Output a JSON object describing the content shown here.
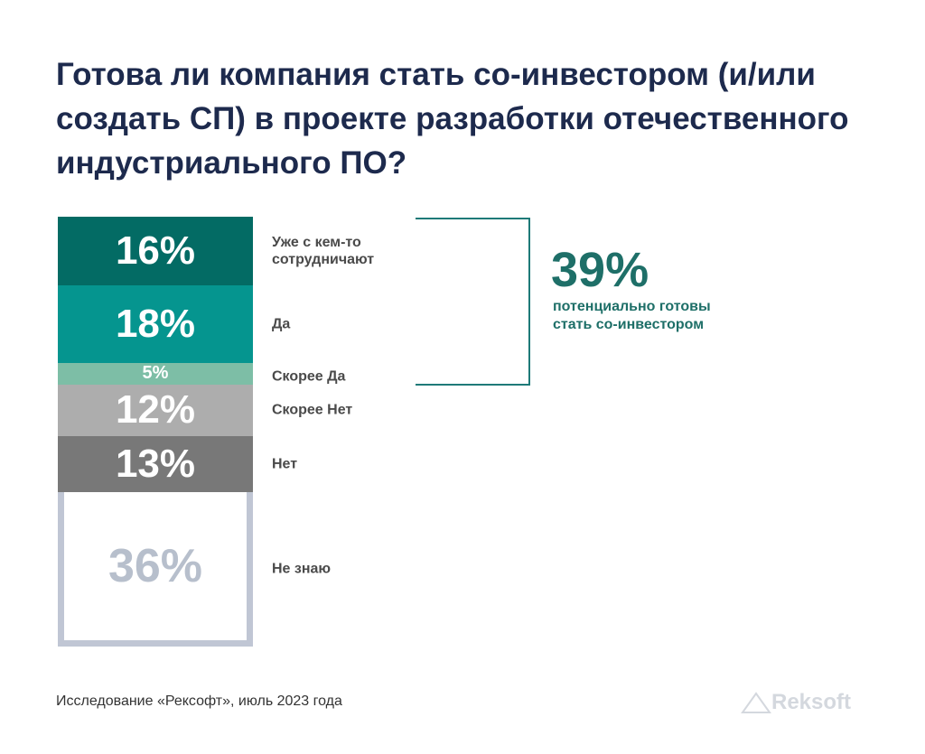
{
  "chart_data": {
    "type": "bar",
    "stacked": true,
    "title": "Готова ли компания стать со-инвестором (и/или создать СП) в проекте разработки отечественного индустриального ПО?",
    "categories": [
      "Уже с кем-то сотрудничают",
      "Да",
      "Скорее Да",
      "Скорее Нет",
      "Нет",
      "Не знаю"
    ],
    "values": [
      16,
      18,
      5,
      12,
      13,
      36
    ],
    "value_labels": [
      "16%",
      "18%",
      "5%",
      "12%",
      "13%",
      "36%"
    ],
    "colors": [
      "#036b64",
      "#05958f",
      "#7dbea6",
      "#adadad",
      "#787878",
      "#ffffff"
    ],
    "text_colors": [
      "#ffffff",
      "#ffffff",
      "#ffffff",
      "#ffffff",
      "#ffffff",
      "#b7bfcc"
    ],
    "annotation": {
      "value": "39%",
      "text": "потенциально готовы стать со-инвестором"
    },
    "ylim": [
      0,
      100
    ]
  },
  "source": "Исследование «Рексофт», июль 2023 года",
  "logo": "Reksoft"
}
